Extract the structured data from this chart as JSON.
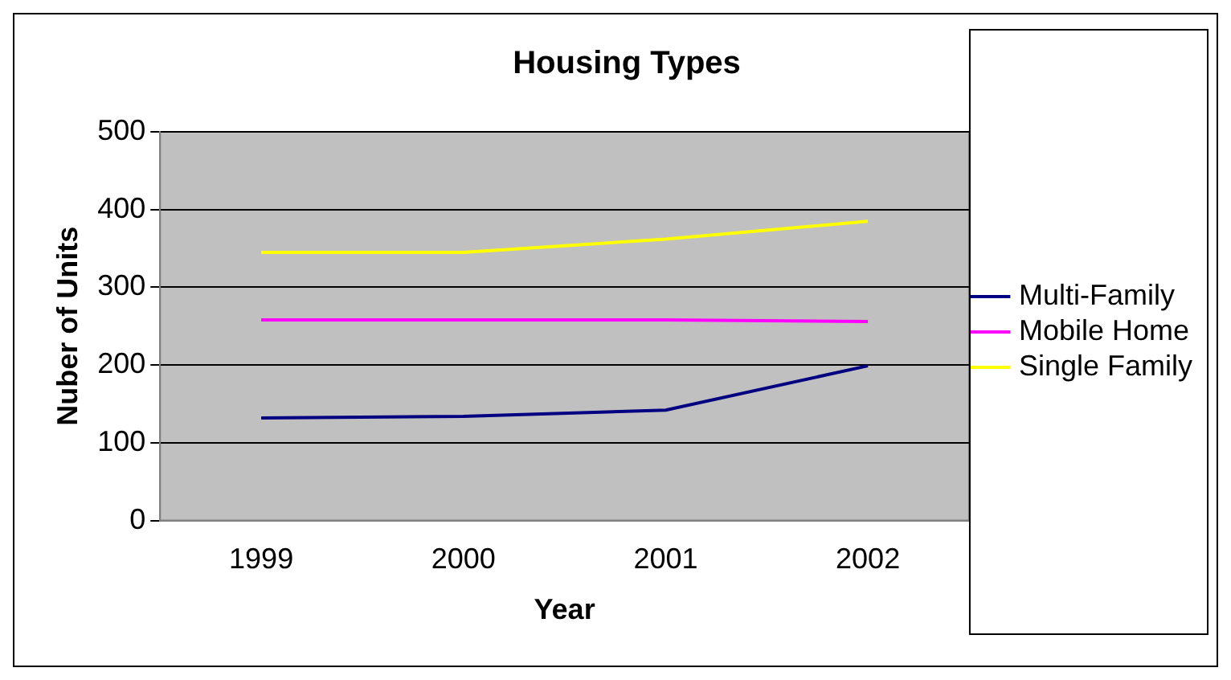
{
  "chart_data": {
    "type": "line",
    "title": "Housing Types",
    "xlabel": "Year",
    "ylabel": "Nuber of Units",
    "categories": [
      "1999",
      "2000",
      "2001",
      "2002"
    ],
    "series": [
      {
        "name": "Multi-Family",
        "color": "#000080",
        "values": [
          132,
          134,
          142,
          199
        ]
      },
      {
        "name": "Mobile Home",
        "color": "#ff00ff",
        "values": [
          258,
          258,
          258,
          256
        ]
      },
      {
        "name": "Single Family",
        "color": "#ffff00",
        "values": [
          345,
          345,
          362,
          385
        ]
      }
    ],
    "ylim": [
      0,
      500
    ],
    "yticks": [
      0,
      100,
      200,
      300,
      400,
      500
    ],
    "grid": "y",
    "legend": "right",
    "marker": "none",
    "line_style": "solid"
  }
}
